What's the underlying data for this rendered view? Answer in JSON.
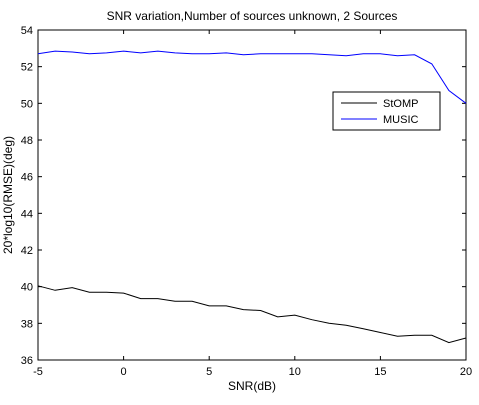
{
  "chart_data": {
    "type": "line",
    "title": "SNR variation,Number of sources unknown, 2 Sources",
    "xlabel": "SNR(dB)",
    "ylabel": "20*log10(RMSE)(deg)",
    "xlim": [
      -5,
      20
    ],
    "ylim": [
      36,
      54
    ],
    "xticks": [
      -5,
      0,
      5,
      10,
      15,
      20
    ],
    "yticks": [
      36,
      38,
      40,
      42,
      44,
      46,
      48,
      50,
      52,
      54
    ],
    "grid": false,
    "legend_position": "right",
    "series": [
      {
        "name": "StOMP",
        "color": "#000000",
        "x": [
          -5,
          -4,
          -3,
          -2,
          -1,
          0,
          1,
          2,
          3,
          4,
          5,
          6,
          7,
          8,
          9,
          10,
          11,
          12,
          13,
          14,
          15,
          16,
          17,
          18,
          19,
          20
        ],
        "y": [
          40.05,
          39.8,
          39.95,
          39.7,
          39.7,
          39.65,
          39.35,
          39.35,
          39.2,
          39.2,
          38.95,
          38.95,
          38.75,
          38.7,
          38.35,
          38.45,
          38.2,
          38.0,
          37.9,
          37.7,
          37.5,
          37.3,
          37.35,
          37.35,
          36.95,
          37.2
        ]
      },
      {
        "name": "MUSIC",
        "color": "#0000ff",
        "x": [
          -5,
          -4,
          -3,
          -2,
          -1,
          0,
          1,
          2,
          3,
          4,
          5,
          6,
          7,
          8,
          9,
          10,
          11,
          12,
          13,
          14,
          15,
          16,
          17,
          18,
          19,
          20
        ],
        "y": [
          52.7,
          52.85,
          52.8,
          52.7,
          52.75,
          52.85,
          52.75,
          52.85,
          52.75,
          52.7,
          52.7,
          52.75,
          52.65,
          52.7,
          52.7,
          52.7,
          52.7,
          52.65,
          52.6,
          52.7,
          52.7,
          52.6,
          52.65,
          52.15,
          50.7,
          50.0
        ]
      }
    ]
  }
}
